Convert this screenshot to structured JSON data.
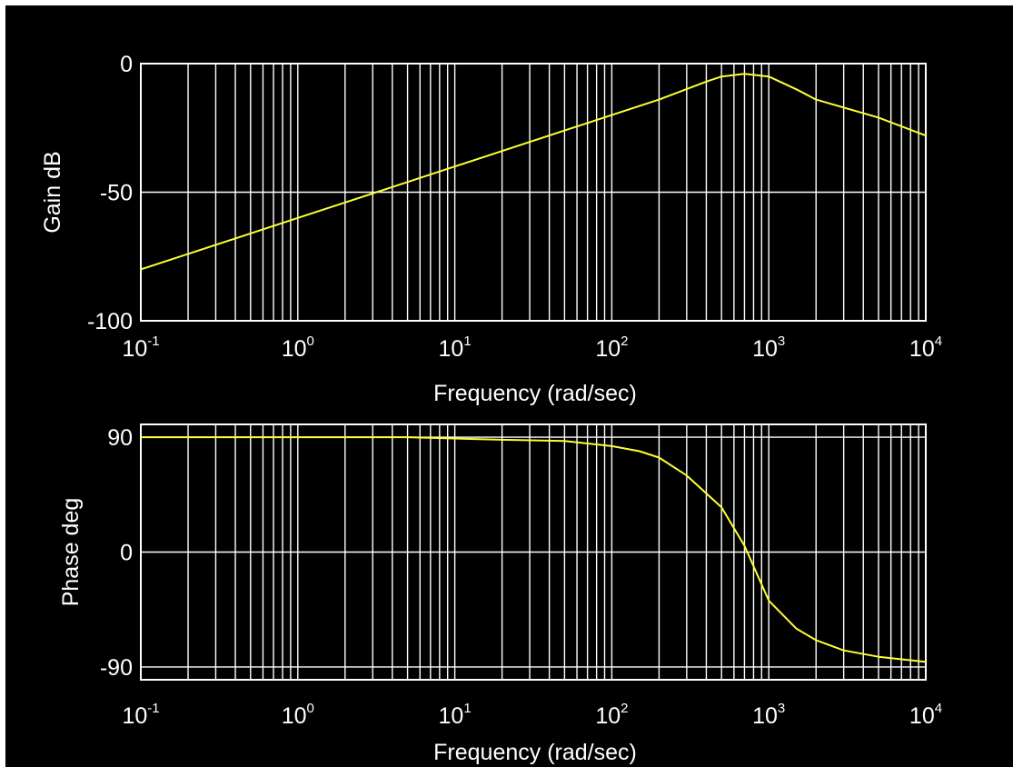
{
  "colors": {
    "background": "#000000",
    "axes": "#ffffff",
    "grid": "#ffffff",
    "text": "#ffffff",
    "curve": "#ffff33"
  },
  "chart_data": [
    {
      "type": "line",
      "xlabel": "Frequency (rad/sec)",
      "ylabel": "Gain dB",
      "x_scale": "log",
      "xlim": [
        0.1,
        10000
      ],
      "ylim": [
        -100,
        0
      ],
      "grid": true,
      "x_ticks": [
        {
          "base": "10",
          "exp": "-1",
          "value": 0.1
        },
        {
          "base": "10",
          "exp": "0",
          "value": 1
        },
        {
          "base": "10",
          "exp": "1",
          "value": 10
        },
        {
          "base": "10",
          "exp": "2",
          "value": 100
        },
        {
          "base": "10",
          "exp": "3",
          "value": 1000
        },
        {
          "base": "10",
          "exp": "4",
          "value": 10000
        }
      ],
      "y_ticks": [
        {
          "label": "0",
          "value": 0
        },
        {
          "label": "-50",
          "value": -50
        },
        {
          "label": "-100",
          "value": -100
        }
      ],
      "series": [
        {
          "x": [
            0.1,
            0.2,
            0.4,
            1,
            2,
            4,
            10,
            20,
            50,
            100,
            200,
            400,
            500,
            700,
            1000,
            1500,
            2000,
            5000,
            10000
          ],
          "y": [
            -80,
            -74,
            -68,
            -60,
            -54,
            -48,
            -40,
            -34,
            -26,
            -20,
            -14,
            -7,
            -5,
            -4,
            -5,
            -10,
            -14,
            -21,
            -28
          ]
        }
      ]
    },
    {
      "type": "line",
      "xlabel": "Frequency (rad/sec)",
      "ylabel": "Phase deg",
      "x_scale": "log",
      "xlim": [
        0.1,
        10000
      ],
      "ylim": [
        -100,
        100
      ],
      "grid": true,
      "x_ticks": [
        {
          "base": "10",
          "exp": "-1",
          "value": 0.1
        },
        {
          "base": "10",
          "exp": "0",
          "value": 1
        },
        {
          "base": "10",
          "exp": "1",
          "value": 10
        },
        {
          "base": "10",
          "exp": "2",
          "value": 100
        },
        {
          "base": "10",
          "exp": "3",
          "value": 1000
        },
        {
          "base": "10",
          "exp": "4",
          "value": 10000
        }
      ],
      "y_ticks": [
        {
          "label": "90",
          "value": 90
        },
        {
          "label": "0",
          "value": 0
        },
        {
          "label": "-90",
          "value": -90
        }
      ],
      "series": [
        {
          "x": [
            0.1,
            1,
            5,
            10,
            20,
            50,
            100,
            150,
            200,
            300,
            500,
            700,
            1000,
            1500,
            2000,
            3000,
            5000,
            10000
          ],
          "y": [
            90,
            90,
            90,
            89,
            88,
            87,
            83,
            79,
            74,
            60,
            35,
            5,
            -38,
            -60,
            -69,
            -77,
            -82,
            -86
          ]
        }
      ]
    }
  ]
}
